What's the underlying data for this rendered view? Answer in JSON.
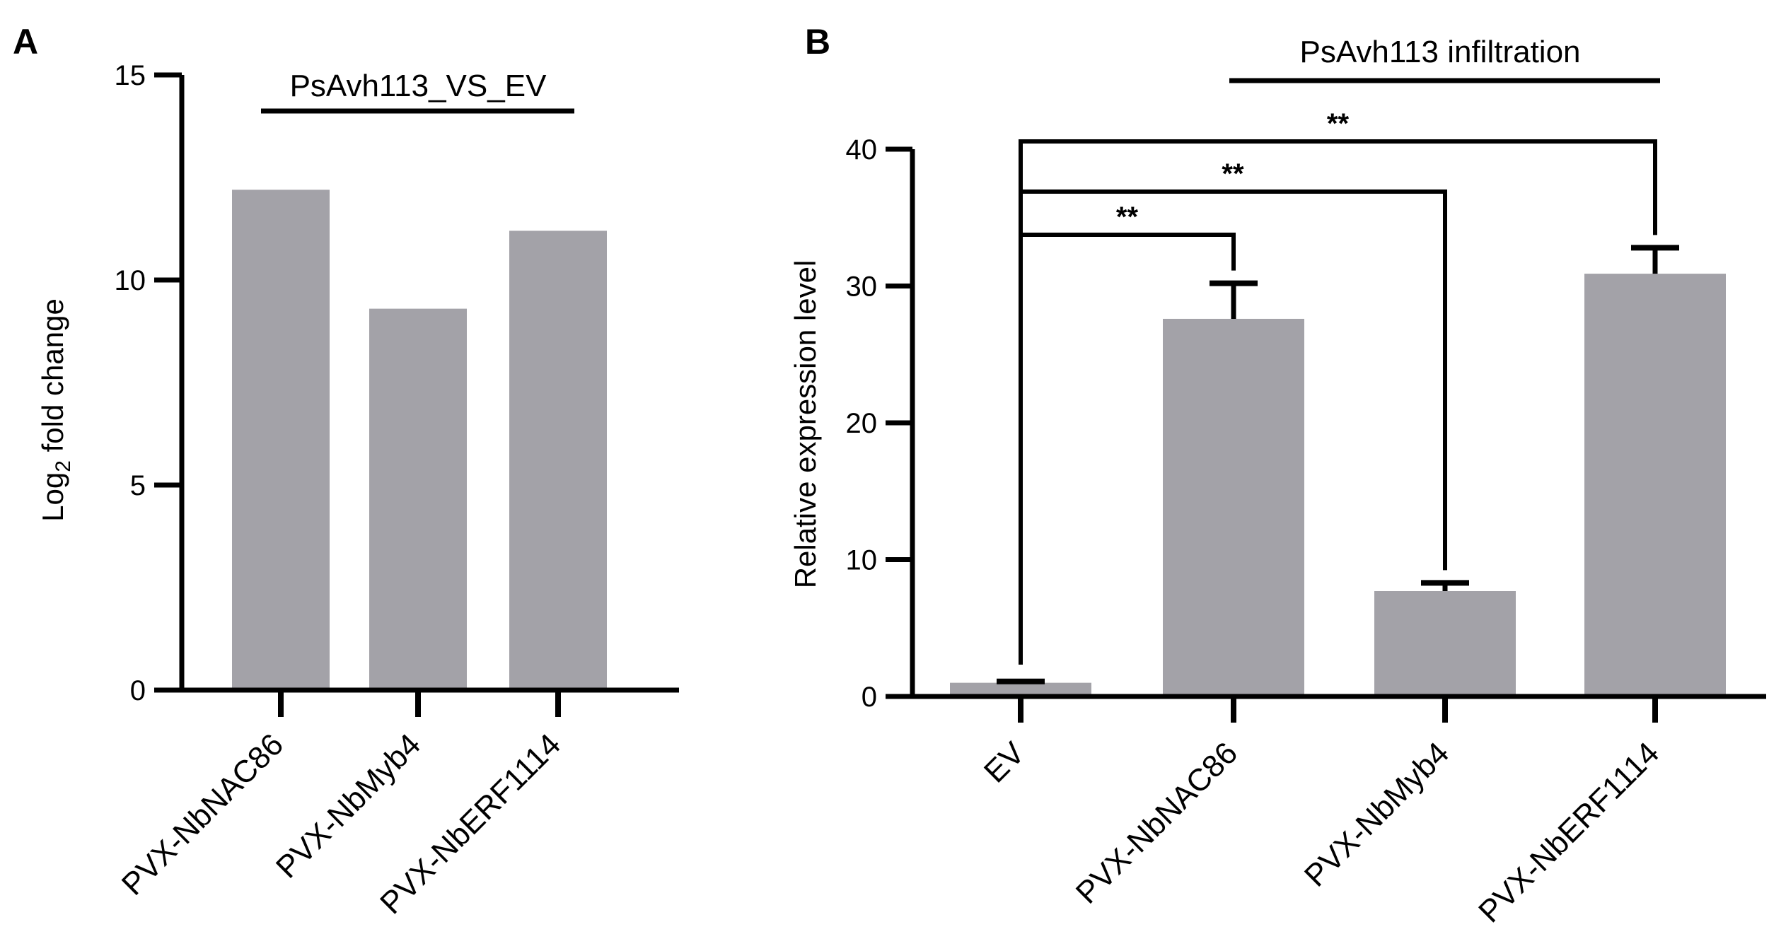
{
  "panels": {
    "A": {
      "label": "A"
    },
    "B": {
      "label": "B"
    }
  },
  "colors": {
    "bar": "#a3a2a8",
    "axis": "#000000"
  },
  "chart_data": [
    {
      "type": "bar",
      "panel": "A",
      "title": "",
      "group_label": "PsAvh113_VS_EV",
      "categories": [
        "PVX-NbNAC86",
        "PVX-NbMyb4",
        "PVX-NbERF1114"
      ],
      "values": [
        12.2,
        9.3,
        11.2
      ],
      "ylabel": "Log",
      "ylabel_sub": "2",
      "ylabel_rest": " fold change",
      "xlabel": "",
      "ylim": [
        0,
        15
      ],
      "yticks": [
        0,
        5,
        10,
        15
      ],
      "grid": false
    },
    {
      "type": "bar",
      "panel": "B",
      "title": "",
      "group_label": "PsAvh113 infiltration",
      "categories": [
        "EV",
        "PVX-NbNAC86",
        "PVX-NbMyb4",
        "PVX-NbERF1114"
      ],
      "values": [
        1.0,
        27.6,
        7.7,
        30.9
      ],
      "errors": [
        0.1,
        2.6,
        0.6,
        1.9
      ],
      "ylabel": "Relative expression level",
      "xlabel": "",
      "ylim": [
        0,
        40
      ],
      "yticks": [
        0,
        10,
        20,
        30,
        40
      ],
      "grid": false,
      "significance": [
        {
          "from": 0,
          "to": 1,
          "label": "**"
        },
        {
          "from": 0,
          "to": 2,
          "label": "**"
        },
        {
          "from": 0,
          "to": 3,
          "label": "**"
        }
      ]
    }
  ]
}
